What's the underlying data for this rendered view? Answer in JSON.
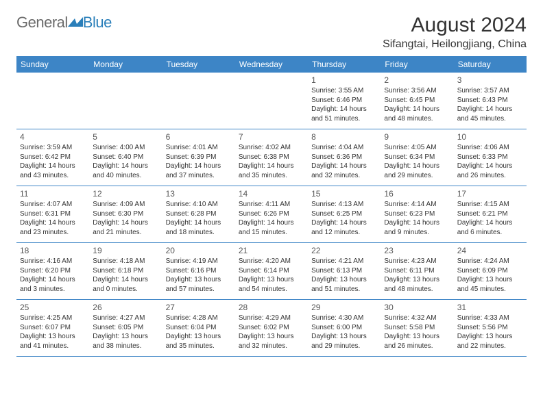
{
  "logo": {
    "text_general": "General",
    "text_blue": "Blue",
    "icon_color": "#2a7fba"
  },
  "title": "August 2024",
  "location": "Sifangtai, Heilongjiang, China",
  "header_bg": "#3d85c6",
  "header_text_color": "#ffffff",
  "border_color": "#3d85c6",
  "weekdays": [
    "Sunday",
    "Monday",
    "Tuesday",
    "Wednesday",
    "Thursday",
    "Friday",
    "Saturday"
  ],
  "weeks": [
    [
      null,
      null,
      null,
      null,
      {
        "n": "1",
        "sr": "3:55 AM",
        "ss": "6:46 PM",
        "dl": "14 hours and 51 minutes."
      },
      {
        "n": "2",
        "sr": "3:56 AM",
        "ss": "6:45 PM",
        "dl": "14 hours and 48 minutes."
      },
      {
        "n": "3",
        "sr": "3:57 AM",
        "ss": "6:43 PM",
        "dl": "14 hours and 45 minutes."
      }
    ],
    [
      {
        "n": "4",
        "sr": "3:59 AM",
        "ss": "6:42 PM",
        "dl": "14 hours and 43 minutes."
      },
      {
        "n": "5",
        "sr": "4:00 AM",
        "ss": "6:40 PM",
        "dl": "14 hours and 40 minutes."
      },
      {
        "n": "6",
        "sr": "4:01 AM",
        "ss": "6:39 PM",
        "dl": "14 hours and 37 minutes."
      },
      {
        "n": "7",
        "sr": "4:02 AM",
        "ss": "6:38 PM",
        "dl": "14 hours and 35 minutes."
      },
      {
        "n": "8",
        "sr": "4:04 AM",
        "ss": "6:36 PM",
        "dl": "14 hours and 32 minutes."
      },
      {
        "n": "9",
        "sr": "4:05 AM",
        "ss": "6:34 PM",
        "dl": "14 hours and 29 minutes."
      },
      {
        "n": "10",
        "sr": "4:06 AM",
        "ss": "6:33 PM",
        "dl": "14 hours and 26 minutes."
      }
    ],
    [
      {
        "n": "11",
        "sr": "4:07 AM",
        "ss": "6:31 PM",
        "dl": "14 hours and 23 minutes."
      },
      {
        "n": "12",
        "sr": "4:09 AM",
        "ss": "6:30 PM",
        "dl": "14 hours and 21 minutes."
      },
      {
        "n": "13",
        "sr": "4:10 AM",
        "ss": "6:28 PM",
        "dl": "14 hours and 18 minutes."
      },
      {
        "n": "14",
        "sr": "4:11 AM",
        "ss": "6:26 PM",
        "dl": "14 hours and 15 minutes."
      },
      {
        "n": "15",
        "sr": "4:13 AM",
        "ss": "6:25 PM",
        "dl": "14 hours and 12 minutes."
      },
      {
        "n": "16",
        "sr": "4:14 AM",
        "ss": "6:23 PM",
        "dl": "14 hours and 9 minutes."
      },
      {
        "n": "17",
        "sr": "4:15 AM",
        "ss": "6:21 PM",
        "dl": "14 hours and 6 minutes."
      }
    ],
    [
      {
        "n": "18",
        "sr": "4:16 AM",
        "ss": "6:20 PM",
        "dl": "14 hours and 3 minutes."
      },
      {
        "n": "19",
        "sr": "4:18 AM",
        "ss": "6:18 PM",
        "dl": "14 hours and 0 minutes."
      },
      {
        "n": "20",
        "sr": "4:19 AM",
        "ss": "6:16 PM",
        "dl": "13 hours and 57 minutes."
      },
      {
        "n": "21",
        "sr": "4:20 AM",
        "ss": "6:14 PM",
        "dl": "13 hours and 54 minutes."
      },
      {
        "n": "22",
        "sr": "4:21 AM",
        "ss": "6:13 PM",
        "dl": "13 hours and 51 minutes."
      },
      {
        "n": "23",
        "sr": "4:23 AM",
        "ss": "6:11 PM",
        "dl": "13 hours and 48 minutes."
      },
      {
        "n": "24",
        "sr": "4:24 AM",
        "ss": "6:09 PM",
        "dl": "13 hours and 45 minutes."
      }
    ],
    [
      {
        "n": "25",
        "sr": "4:25 AM",
        "ss": "6:07 PM",
        "dl": "13 hours and 41 minutes."
      },
      {
        "n": "26",
        "sr": "4:27 AM",
        "ss": "6:05 PM",
        "dl": "13 hours and 38 minutes."
      },
      {
        "n": "27",
        "sr": "4:28 AM",
        "ss": "6:04 PM",
        "dl": "13 hours and 35 minutes."
      },
      {
        "n": "28",
        "sr": "4:29 AM",
        "ss": "6:02 PM",
        "dl": "13 hours and 32 minutes."
      },
      {
        "n": "29",
        "sr": "4:30 AM",
        "ss": "6:00 PM",
        "dl": "13 hours and 29 minutes."
      },
      {
        "n": "30",
        "sr": "4:32 AM",
        "ss": "5:58 PM",
        "dl": "13 hours and 26 minutes."
      },
      {
        "n": "31",
        "sr": "4:33 AM",
        "ss": "5:56 PM",
        "dl": "13 hours and 22 minutes."
      }
    ]
  ],
  "labels": {
    "sunrise": "Sunrise:",
    "sunset": "Sunset:",
    "daylight": "Daylight:"
  }
}
